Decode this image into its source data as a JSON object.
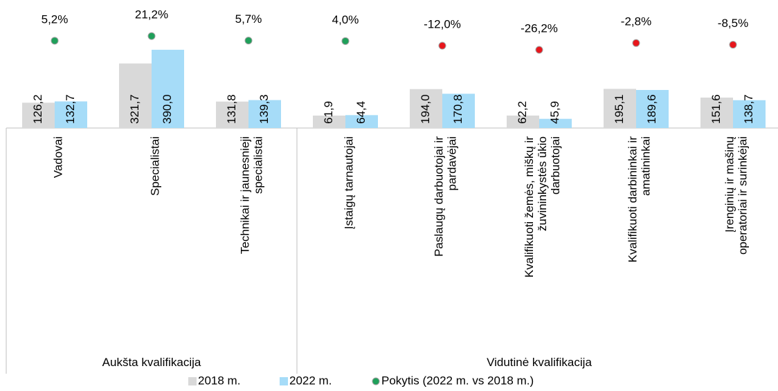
{
  "chart_data": {
    "type": "bar",
    "categories": [
      "Vadovai",
      "Specialistai",
      "Technikai ir jaunesnieji\nspecialistai",
      "Įstaigų tarnautojai",
      "Paslaugų darbuotojai ir\npardavėjai",
      "Kvalifikuoti žemės, miškų ir\nžuvininkystės ūkio\ndarbuotojai",
      "Kvalifikuoti darbininkai ir\namatininkai",
      "Įrenginių ir mašinų\noperatoriai ir surinkėjai"
    ],
    "groups": [
      {
        "name": "Aukšta kvalifikacija",
        "span": 3
      },
      {
        "name": "Vidutinė kvalifikacija",
        "span": 5
      }
    ],
    "series": [
      {
        "name": "2018 m.",
        "color": "#d9d9d9",
        "values": [
          126.2,
          321.7,
          131.8,
          61.9,
          194.0,
          62.2,
          195.1,
          151.6
        ],
        "value_labels": [
          "126,2",
          "321,7",
          "131,8",
          "61,9",
          "194,0",
          "62,2",
          "195,1",
          "151,6"
        ]
      },
      {
        "name": "2022 m.",
        "color": "#a6dcf8",
        "values": [
          132.7,
          390.0,
          139.3,
          64.4,
          170.8,
          45.9,
          189.6,
          138.7
        ],
        "value_labels": [
          "132,7",
          "390,0",
          "139,3",
          "64,4",
          "170,8",
          "45,9",
          "189,6",
          "138,7"
        ]
      },
      {
        "name": "Pokytis (2022 m. vs 2018 m.)",
        "type": "dot",
        "color": "#1fa05a",
        "negative_color": "#e8161c",
        "values": [
          5.2,
          21.2,
          5.7,
          4.0,
          -12.0,
          -26.2,
          -2.8,
          -8.5
        ],
        "value_labels": [
          "5,2%",
          "21,2%",
          "5,7%",
          "4,0%",
          "-12,0%",
          "-26,2%",
          "-2,8%",
          "-8,5%"
        ]
      }
    ]
  }
}
